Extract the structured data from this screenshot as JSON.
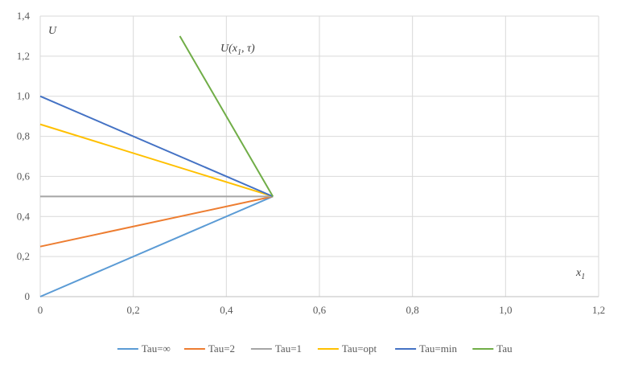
{
  "chart_data": {
    "type": "line",
    "xlabel": "x₁",
    "ylabel": "U",
    "xlim": [
      0,
      1.2
    ],
    "ylim": [
      0,
      1.4
    ],
    "x_ticks": [
      "0",
      "0,2",
      "0,4",
      "0,6",
      "0,8",
      "1,0",
      "1,2"
    ],
    "y_ticks": [
      "0",
      "0,2",
      "0,4",
      "0,6",
      "0,8",
      "1,0",
      "1,2",
      "1,4"
    ],
    "grid": true,
    "legend_position": "bottom",
    "annotation": {
      "text_main": "U(x",
      "text_sub": "1",
      "text_tail": ", τ)",
      "near": {
        "x": 0.39,
        "y": 1.24
      }
    },
    "series": [
      {
        "name": "Tau=∞",
        "color": "#5B9BD5",
        "x": [
          0,
          0.5
        ],
        "y": [
          0,
          0.5
        ]
      },
      {
        "name": "Tau=2",
        "color": "#ED7D31",
        "x": [
          0,
          0.5
        ],
        "y": [
          0.25,
          0.5
        ]
      },
      {
        "name": "Tau=1",
        "color": "#A5A5A5",
        "x": [
          0,
          0.5
        ],
        "y": [
          0.5,
          0.5
        ]
      },
      {
        "name": "Tau=opt",
        "color": "#FFC000",
        "x": [
          0,
          0.5
        ],
        "y": [
          0.86,
          0.5
        ]
      },
      {
        "name": "Tau=min",
        "color": "#4472C4",
        "x": [
          0,
          0.5
        ],
        "y": [
          1.0,
          0.5
        ]
      },
      {
        "name": "Tau",
        "color": "#70AD47",
        "x": [
          0.3,
          0.5
        ],
        "y": [
          1.3,
          0.5
        ]
      }
    ]
  }
}
